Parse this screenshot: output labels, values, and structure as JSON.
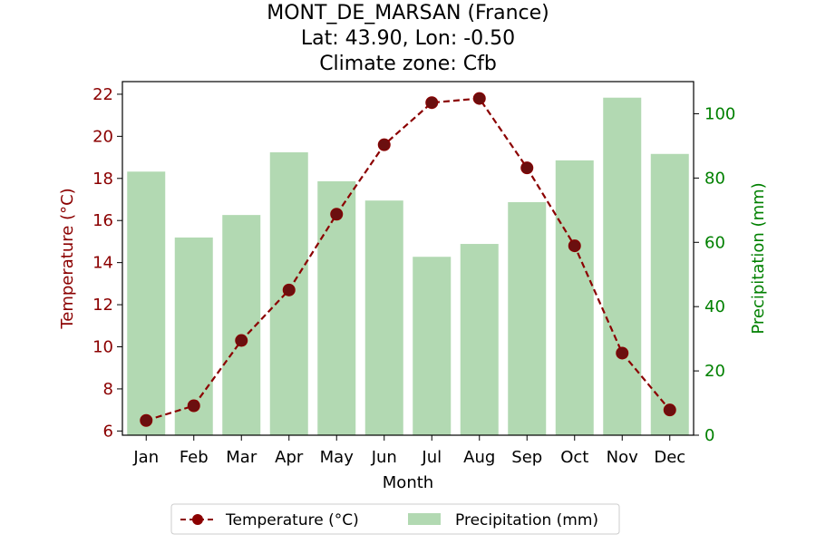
{
  "chart_data": {
    "type": "bar+line",
    "title_lines": [
      "MONT_DE_MARSAN (France)",
      "Lat: 43.90, Lon: -0.50",
      "Climate zone: Cfb"
    ],
    "xlabel": "Month",
    "ylabel_left": "Temperature (°C)",
    "ylabel_right": "Precipitation (mm)",
    "categories": [
      "Jan",
      "Feb",
      "Mar",
      "Apr",
      "May",
      "Jun",
      "Jul",
      "Aug",
      "Sep",
      "Oct",
      "Nov",
      "Dec"
    ],
    "series": [
      {
        "name": "Temperature (°C)",
        "type": "line",
        "axis": "left",
        "color": "#8b0000",
        "values": [
          6.5,
          7.2,
          10.3,
          12.7,
          16.3,
          19.6,
          21.6,
          21.8,
          18.5,
          14.8,
          9.7,
          7.0
        ]
      },
      {
        "name": "Precipitation (mm)",
        "type": "bar",
        "axis": "right",
        "color": "#b2d9b2",
        "values": [
          82,
          61.5,
          68.5,
          88,
          79,
          73,
          55.5,
          59.5,
          72.5,
          85.5,
          105,
          87.5
        ]
      }
    ],
    "ylim_left": [
      5.8,
      22.6
    ],
    "yticks_left": [
      6,
      8,
      10,
      12,
      14,
      16,
      18,
      20,
      22
    ],
    "ylim_right": [
      0,
      110
    ],
    "yticks_right": [
      0,
      20,
      40,
      60,
      80,
      100
    ],
    "legend_position": "bottom-center",
    "grid": false
  }
}
